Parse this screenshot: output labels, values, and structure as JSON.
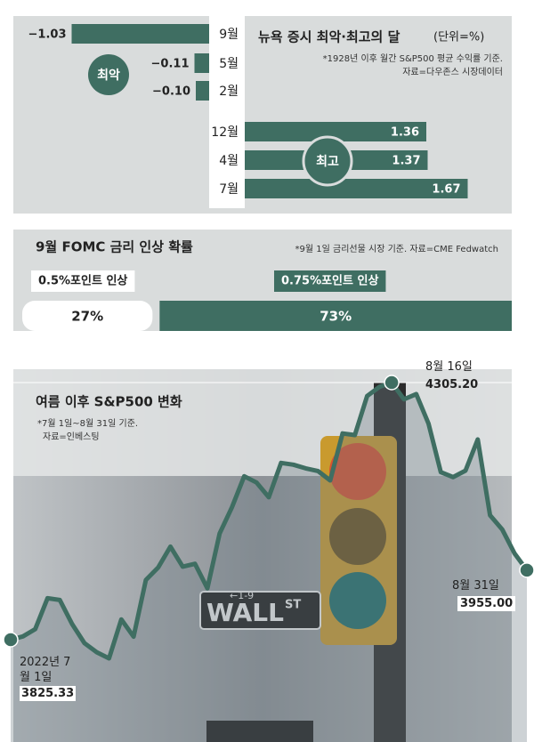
{
  "chart_data": [
    {
      "type": "diverging_bar",
      "title": "뉴욕 증시 최악·최고의 달",
      "unit_label": "(단위=%)",
      "notes": [
        "*1928년 이후 월간 S&P500 평균 수익률 기준.",
        "자료=다우존스 시장데이터"
      ],
      "group_labels": [
        "최악",
        "최고"
      ],
      "categories": [
        "9월",
        "5월",
        "2월",
        "12월",
        "4월",
        "7월"
      ],
      "values": [
        -1.03,
        -0.11,
        -0.1,
        1.36,
        1.37,
        1.67
      ],
      "value_labels": [
        "−1.03",
        "−0.11",
        "−0.10",
        "1.36",
        "1.37",
        "1.67"
      ],
      "color": "#3f6e62"
    },
    {
      "type": "stacked_bar",
      "title": "9월 FOMC 금리 인상 확률",
      "note": "*9월 1일 금리선물 시장 기준. 자료=CME Fedwatch",
      "categories": [
        "0.5%포인트 인상",
        "0.75%포인트 인상"
      ],
      "values": [
        27,
        73
      ],
      "value_labels": [
        "27%",
        "73%"
      ],
      "colors": [
        "#ffffff",
        "#3f6e62"
      ]
    },
    {
      "type": "line",
      "title": "여름 이후 S&P500 변화",
      "notes": [
        "*7월 1일~8월 31일 기준.",
        "자료=인베스팅"
      ],
      "sign": {
        "street": "WALL",
        "suffix": "ST",
        "number": "←1-9"
      },
      "categories": [
        "2022년 7월 1일",
        null,
        null,
        null,
        null,
        null,
        null,
        null,
        null,
        null,
        null,
        null,
        null,
        null,
        null,
        null,
        null,
        null,
        null,
        null,
        null,
        null,
        null,
        null,
        null,
        null,
        null,
        null,
        null,
        null,
        null,
        "8월 16일",
        null,
        null,
        null,
        null,
        null,
        null,
        null,
        null,
        null,
        null,
        "8월 31일"
      ],
      "values": [
        3825.33,
        3831.39,
        3845.08,
        3902.62,
        3899.38,
        3854.43,
        3818.8,
        3801.78,
        3790.38,
        3863.16,
        3830.85,
        3936.69,
        3959.9,
        3998.95,
        3961.63,
        3966.84,
        3921.05,
        4023.61,
        4072.43,
        4130.29,
        4118.63,
        4091.19,
        4155.17,
        4151.94,
        4145.19,
        4140.06,
        4122.47,
        4210.24,
        4207.27,
        4280.15,
        4297.14,
        4305.2,
        4274.04,
        4283.74,
        4228.48,
        4137.99,
        4128.73,
        4140.77,
        4199.12,
        4057.66,
        4030.61,
        3986.16,
        3955.0
      ],
      "value_labels": [
        "3825.33",
        null,
        null,
        null,
        null,
        null,
        null,
        null,
        null,
        null,
        null,
        null,
        null,
        null,
        null,
        null,
        null,
        null,
        null,
        null,
        null,
        null,
        null,
        null,
        null,
        null,
        null,
        null,
        null,
        null,
        null,
        "4305.20",
        null,
        null,
        null,
        null,
        null,
        null,
        null,
        null,
        null,
        null,
        "3955.00"
      ],
      "color": "#3f6e62"
    }
  ]
}
